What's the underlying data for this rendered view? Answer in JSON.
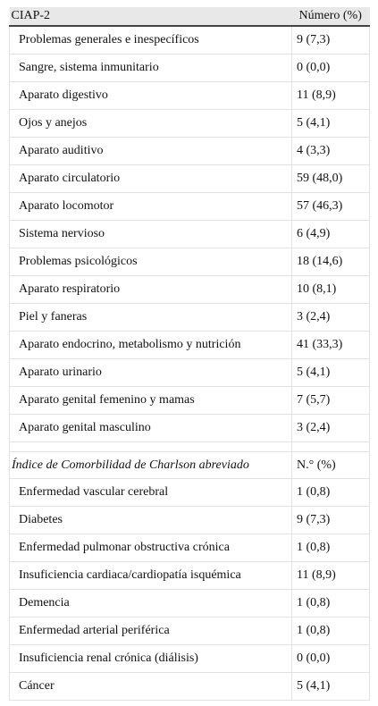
{
  "table": {
    "header": [
      "CIAP-2",
      "Número (%)"
    ],
    "rows": [
      [
        "Problemas generales e inespecíficos",
        "9 (7,3)"
      ],
      [
        "Sangre, sistema inmunitario",
        "0 (0,0)"
      ],
      [
        "Aparato digestivo",
        "11 (8,9)"
      ],
      [
        "Ojos y anejos",
        "5 (4,1)"
      ],
      [
        "Aparato auditivo",
        "4 (3,3)"
      ],
      [
        "Aparato circulatorio",
        "59 (48,0)"
      ],
      [
        "Aparato locomotor",
        "57 (46,3)"
      ],
      [
        "Sistema nervioso",
        "6 (4,9)"
      ],
      [
        "Problemas psicológicos",
        "18 (14,6)"
      ],
      [
        "Aparato respiratorio",
        "10 (8,1)"
      ],
      [
        "Piel y faneras",
        "3 (2,4)"
      ],
      [
        "Aparato endocrino, metabolismo y nutrición",
        "41 (33,3)"
      ],
      [
        "Aparato urinario",
        "5 (4,1)"
      ],
      [
        "Aparato genital femenino y mamas",
        "7 (5,7)"
      ],
      [
        "Aparato genital masculino",
        "3 (2,4)"
      ]
    ],
    "subheader": [
      "Índice de Comorbilidad de Charlson abreviado",
      "N.° (%)"
    ],
    "rows2": [
      [
        "Enfermedad vascular cerebral",
        "1 (0,8)"
      ],
      [
        "Diabetes",
        "9 (7,3)"
      ],
      [
        "Enfermedad pulmonar obstructiva crónica",
        "1 (0,8)"
      ],
      [
        "Insuficiencia cardiaca/cardiopatía isquémica",
        "11 (8,9)"
      ],
      [
        "Demencia",
        "1 (0,8)"
      ],
      [
        "Enfermedad arterial periférica",
        "1 (0,8)"
      ],
      [
        "Insuficiencia renal crónica (diálisis)",
        "0 (0,0)"
      ],
      [
        "Cáncer",
        "5 (4,1)"
      ]
    ]
  }
}
